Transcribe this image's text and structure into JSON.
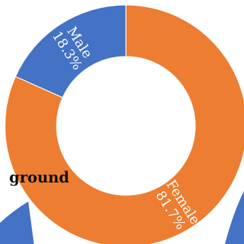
{
  "background": {
    "partial_text": "ground",
    "text_color": "#111111",
    "shape_color": "#4472c4"
  },
  "chart_data": {
    "type": "pie",
    "variant": "donut",
    "title": "",
    "labels": [
      "Female",
      "Male"
    ],
    "values": [
      81.7,
      18.3
    ],
    "value_labels": [
      "81.7%",
      "18.3%"
    ],
    "colors": [
      "#ed7d31",
      "#4472c4"
    ],
    "slice_border_color": "#ffffff",
    "legend": "none"
  }
}
